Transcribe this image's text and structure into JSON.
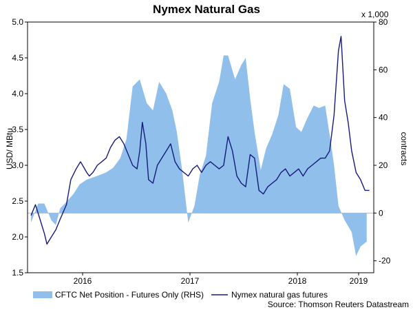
{
  "chart_data": {
    "type": "line",
    "title": "Nymex Natural Gas",
    "source": "Source: Thomson Reuters Datastream",
    "x_ticks": [
      "2016",
      "2017",
      "2018",
      "2019"
    ],
    "left_axis": {
      "label": "USD/ MBtu",
      "ylim": [
        1.5,
        5.0
      ],
      "ticks": [
        "1.5",
        "2.0",
        "2.5",
        "3.0",
        "3.5",
        "4.0",
        "4.5",
        "5.0"
      ]
    },
    "right_axis": {
      "label": "contracts",
      "unit_note": "x 1,000",
      "ylim": [
        -25,
        80
      ],
      "ticks": [
        "-20",
        "0",
        "20",
        "40",
        "60",
        "80"
      ]
    },
    "legend_position": "bottom",
    "series": [
      {
        "name": "CFTC Net Position - Futures Only (RHS)",
        "axis": "right",
        "style": "area",
        "color": "#8fbfea",
        "x": [
          2015.37,
          2015.45,
          2015.52,
          2015.6,
          2015.65,
          2015.7,
          2015.78,
          2015.85,
          2015.92,
          2016.0,
          2016.08,
          2016.15,
          2016.22,
          2016.3,
          2016.38,
          2016.45,
          2016.52,
          2016.6,
          2016.68,
          2016.75,
          2016.82,
          2016.9,
          2016.97,
          2017.02,
          2017.08,
          2017.15,
          2017.22,
          2017.28,
          2017.35,
          2017.42,
          2017.5,
          2017.55,
          2017.6,
          2017.68,
          2017.75,
          2017.8,
          2017.85,
          2017.9,
          2017.97,
          2018.03,
          2018.1,
          2018.17,
          2018.23,
          2018.3,
          2018.37,
          2018.43,
          2018.5,
          2018.57,
          2018.63,
          2018.7,
          2018.77,
          2018.8,
          2018.85,
          2018.92,
          2019.0,
          2019.05,
          2019.1,
          2019.17
        ],
        "values": [
          -4,
          4,
          4,
          -3,
          -5,
          2,
          5,
          8,
          12,
          14,
          15,
          16,
          17,
          19,
          23,
          31,
          53,
          56,
          46,
          43,
          55,
          50,
          43,
          34,
          18,
          -4,
          3,
          16,
          24,
          46,
          55,
          66,
          66,
          56,
          62,
          65,
          48,
          34,
          18,
          27,
          33,
          41,
          54,
          52,
          36,
          34,
          40,
          45,
          44,
          45,
          28,
          20,
          3,
          -3,
          -8,
          -18,
          -14,
          -12
        ]
      },
      {
        "name": "Nymex natural gas futures",
        "axis": "left",
        "style": "line",
        "color": "#151a7a",
        "x": [
          2015.37,
          2015.42,
          2015.47,
          2015.52,
          2015.55,
          2015.6,
          2015.65,
          2015.7,
          2015.77,
          2015.82,
          2015.88,
          2015.93,
          2016.0,
          2016.03,
          2016.07,
          2016.12,
          2016.17,
          2016.22,
          2016.27,
          2016.32,
          2016.37,
          2016.42,
          2016.47,
          2016.52,
          2016.57,
          2016.6,
          2016.63,
          2016.67,
          2016.7,
          2016.75,
          2016.8,
          2016.85,
          2016.9,
          2016.95,
          2017.0,
          2017.05,
          2017.1,
          2017.15,
          2017.2,
          2017.25,
          2017.3,
          2017.35,
          2017.4,
          2017.45,
          2017.5,
          2017.55,
          2017.6,
          2017.65,
          2017.7,
          2017.75,
          2017.8,
          2017.85,
          2017.9,
          2017.95,
          2018.0,
          2018.05,
          2018.1,
          2018.15,
          2018.2,
          2018.25,
          2018.3,
          2018.35,
          2018.4,
          2018.45,
          2018.5,
          2018.55,
          2018.6,
          2018.65,
          2018.7,
          2018.75,
          2018.8,
          2018.85,
          2018.88,
          2018.92,
          2018.96,
          2019.0,
          2019.05,
          2019.1,
          2019.15,
          2019.2
        ],
        "values": [
          2.3,
          2.45,
          2.25,
          2.05,
          1.9,
          2.0,
          2.1,
          2.25,
          2.45,
          2.8,
          2.95,
          3.05,
          2.9,
          2.85,
          2.9,
          3.0,
          3.05,
          3.1,
          3.25,
          3.35,
          3.4,
          3.3,
          3.15,
          3.0,
          2.95,
          3.2,
          3.6,
          3.3,
          2.8,
          2.75,
          3.0,
          3.1,
          3.2,
          3.3,
          3.05,
          2.95,
          2.9,
          2.85,
          2.95,
          3.0,
          2.9,
          3.0,
          3.05,
          3.0,
          2.95,
          3.0,
          3.4,
          3.2,
          2.85,
          2.75,
          2.7,
          3.15,
          3.1,
          2.65,
          2.6,
          2.7,
          2.75,
          2.8,
          2.9,
          2.95,
          2.85,
          2.9,
          2.95,
          2.85,
          2.95,
          3.0,
          3.05,
          3.1,
          3.1,
          3.2,
          3.7,
          4.6,
          4.8,
          3.9,
          3.6,
          3.2,
          2.9,
          2.8,
          2.65,
          2.65
        ]
      }
    ]
  }
}
